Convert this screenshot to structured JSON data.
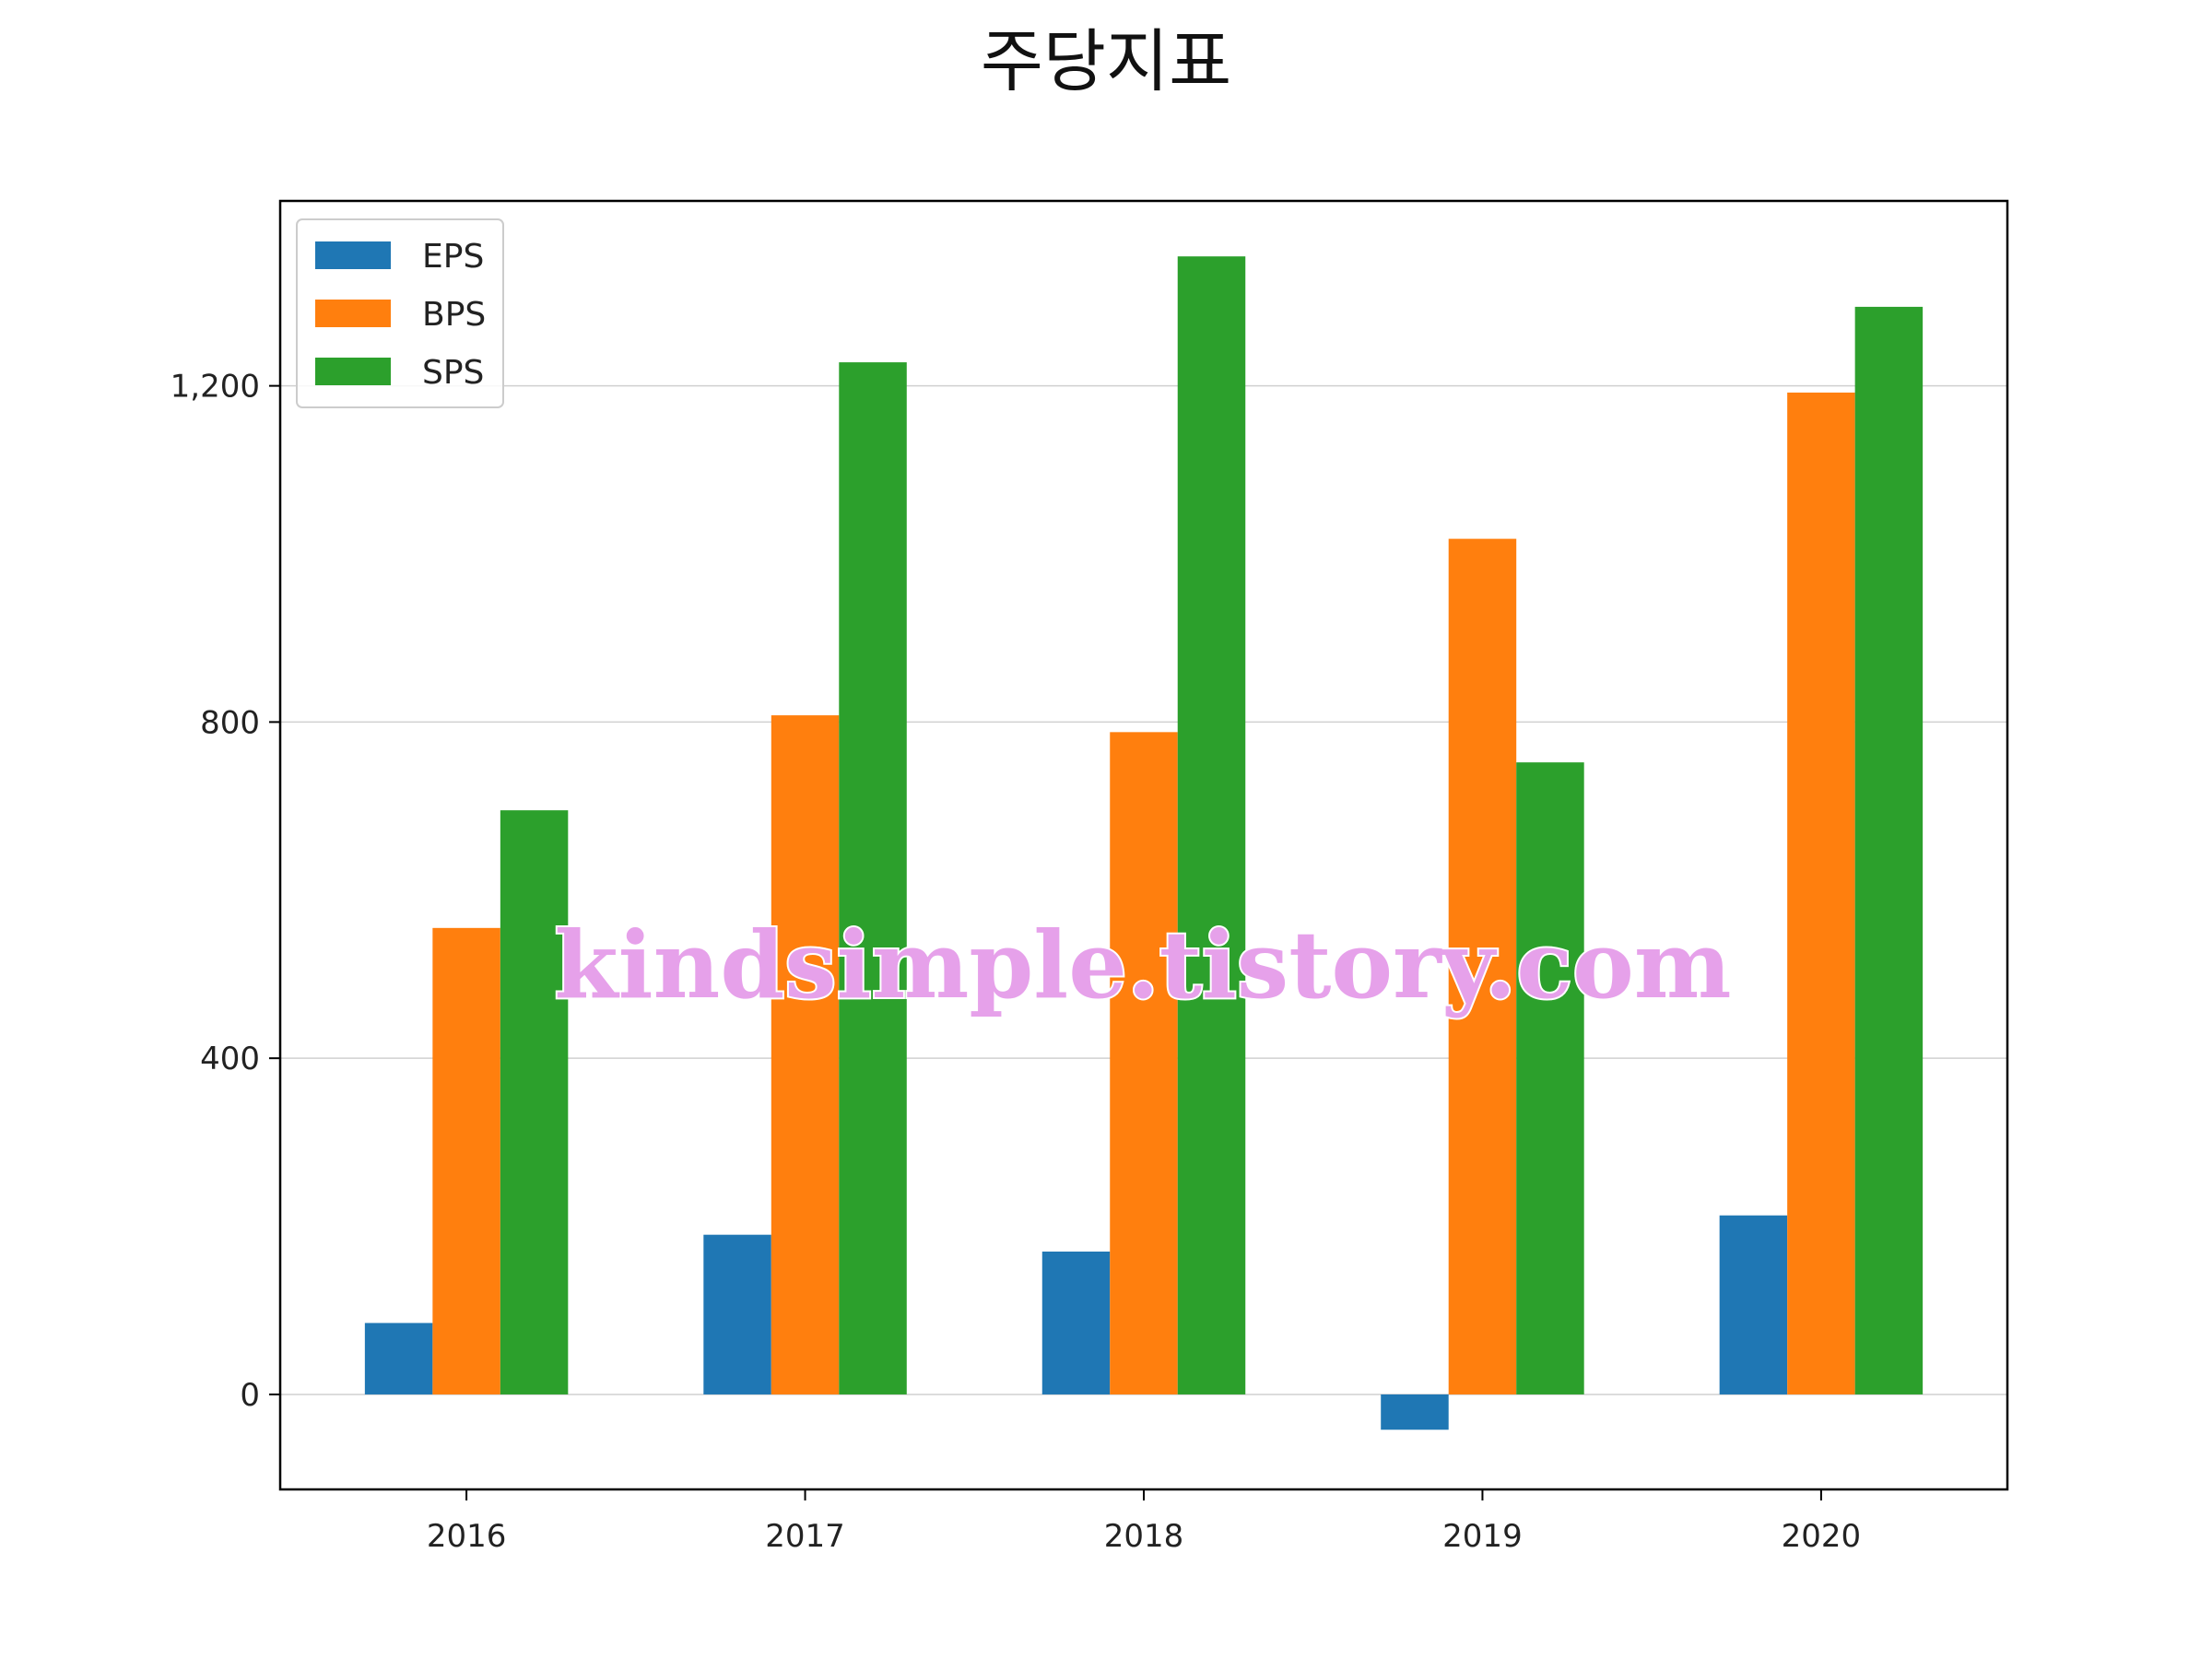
{
  "chart_data": {
    "type": "bar",
    "title": "주당지표",
    "xlabel": "",
    "ylabel": "",
    "categories": [
      "2016",
      "2017",
      "2018",
      "2019",
      "2020"
    ],
    "series": [
      {
        "name": "EPS",
        "color": "#1f77b4",
        "values": [
          85,
          190,
          170,
          -42,
          213
        ]
      },
      {
        "name": "BPS",
        "color": "#ff7f0e",
        "values": [
          555,
          808,
          788,
          1018,
          1192
        ]
      },
      {
        "name": "SPS",
        "color": "#2ca02c",
        "values": [
          695,
          1228,
          1354,
          752,
          1294
        ]
      }
    ],
    "ylim": [
      -113,
      1420
    ],
    "yticks": [
      0,
      400,
      800,
      1200
    ],
    "ytick_labels": [
      "0",
      "400",
      "800",
      "1,200"
    ],
    "grid": "y",
    "legend_position": "top-left",
    "watermark": "kindsimple.tistory.com"
  }
}
